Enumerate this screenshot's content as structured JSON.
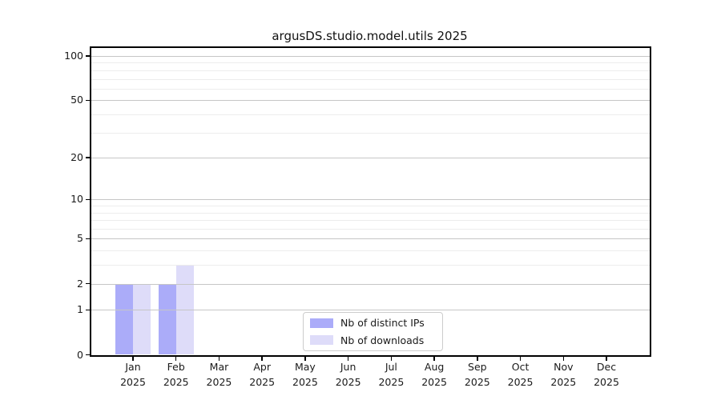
{
  "figure": {
    "background": "#ffffff"
  },
  "chart_data": {
    "type": "bar",
    "title": "argusDS.studio.model.utils 2025",
    "categories": [
      "Jan",
      "Feb",
      "Mar",
      "Apr",
      "May",
      "Jun",
      "Jul",
      "Aug",
      "Sep",
      "Oct",
      "Nov",
      "Dec"
    ],
    "category_year": "2025",
    "series": [
      {
        "name": "Nb of distinct IPs",
        "color": "#abacf9",
        "values": [
          2,
          2,
          0,
          0,
          0,
          0,
          0,
          0,
          0,
          0,
          0,
          0
        ]
      },
      {
        "name": "Nb of downloads",
        "color": "#dedcf9",
        "values": [
          2,
          3,
          0,
          0,
          0,
          0,
          0,
          0,
          0,
          0,
          0,
          0
        ]
      }
    ],
    "xlabel": "",
    "ylabel": "",
    "yscale": "log1p",
    "ylim": [
      0,
      113
    ],
    "yticks": [
      0,
      1,
      2,
      5,
      10,
      20,
      50,
      100
    ],
    "minor_yticks": [
      3,
      4,
      6,
      7,
      8,
      9,
      30,
      40,
      60,
      70,
      80,
      90
    ],
    "grid": true,
    "grid_over_bars": true,
    "legend_position": "lower-center",
    "colors": {
      "major_grid": "#c6c6c6",
      "minor_grid": "#ececec",
      "spine": "#000000",
      "text": "#1a1a1a"
    }
  }
}
